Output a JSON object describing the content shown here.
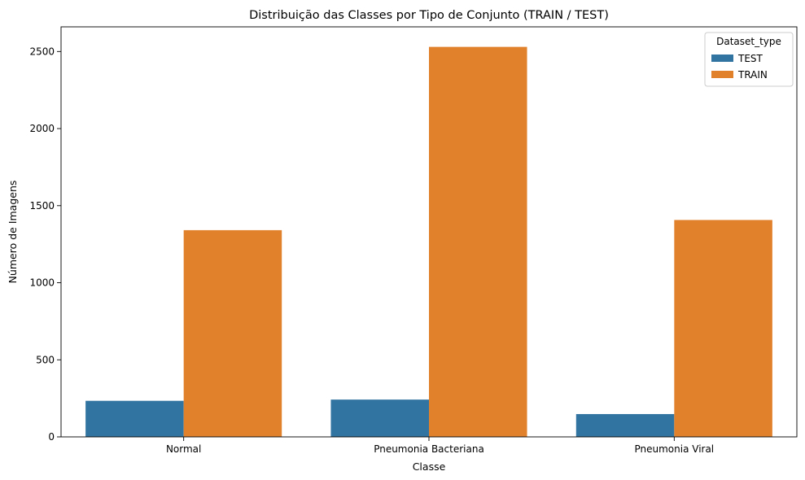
{
  "chart_data": {
    "type": "bar",
    "title": "Distribuição das Classes por Tipo de Conjunto (TRAIN / TEST)",
    "xlabel": "Classe",
    "ylabel": "Número de Imagens",
    "categories": [
      "Normal",
      "Pneumonia Bacteriana",
      "Pneumonia Viral"
    ],
    "series": [
      {
        "name": "TEST",
        "color": "#3274a1",
        "values": [
          234,
          242,
          148
        ]
      },
      {
        "name": "TRAIN",
        "color": "#e1812c",
        "values": [
          1341,
          2530,
          1407
        ]
      }
    ],
    "ylim": [
      0,
      2660
    ],
    "yticks": [
      0,
      500,
      1000,
      1500,
      2000,
      2500
    ],
    "legend": {
      "title": "Dataset_type",
      "placement": "top-right"
    },
    "grid": false
  }
}
